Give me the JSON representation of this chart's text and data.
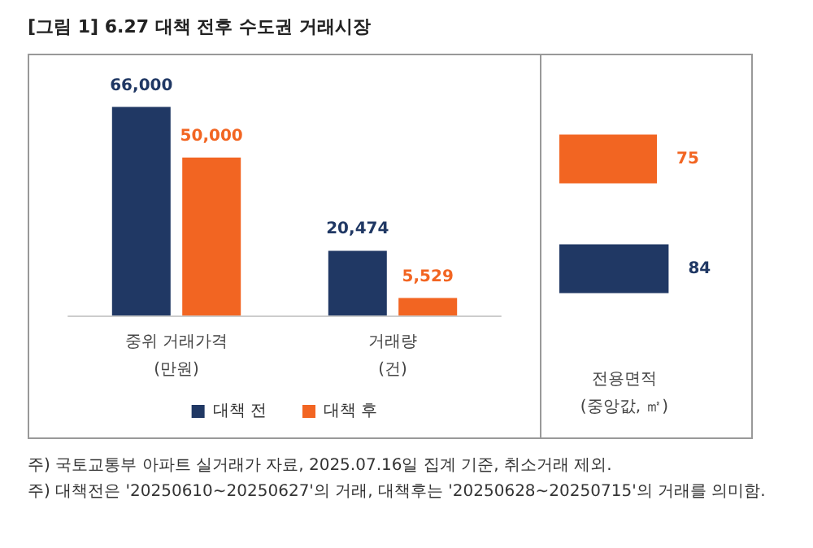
{
  "chart_data": [
    {
      "type": "bar",
      "title": "[그림 1] 6.27 대책 전후 수도권 거래시장",
      "categories": [
        "중위 거래가격\n(만원)",
        "거래량\n(건)"
      ],
      "series": [
        {
          "name": "대책 전",
          "color": "#203864",
          "values": [
            66000,
            20474
          ],
          "value_labels": [
            "66,000",
            "20,474"
          ]
        },
        {
          "name": "대책 후",
          "color": "#f26522",
          "values": [
            50000,
            5529
          ],
          "value_labels": [
            "50,000",
            "5,529"
          ]
        }
      ],
      "legend": "bottom",
      "annotations": [
        "주) 국토교통부 아파트 실거래가 자료, 2025.07.16일 집계 기준, 취소거래 제외.",
        "주) 대책전은 '20250610~20250627'의 거래, 대책후는 '20250628~20250715'의 거래를 의미함."
      ]
    },
    {
      "type": "bar",
      "orientation": "horizontal",
      "xlabel": "전용면적\n(중앙값, ㎡)",
      "categories": [
        null,
        null
      ],
      "series": [
        {
          "colors": [
            "#f26522",
            "#203864"
          ],
          "values": [
            75,
            84
          ]
        }
      ],
      "data_labels": true
    }
  ]
}
